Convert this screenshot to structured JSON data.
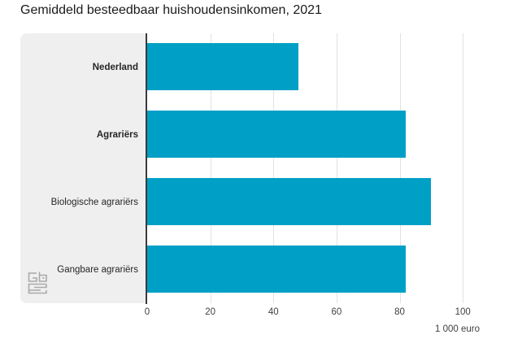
{
  "title": "Gemiddeld besteedbaar huishoudensinkomen, 2021",
  "chart_data": {
    "type": "bar",
    "orientation": "horizontal",
    "title": "Gemiddeld besteedbaar huishoudensinkomen, 2021",
    "categories": [
      "Nederland",
      "Agrariërs",
      "Biologische agrariërs",
      "Gangbare agrariërs"
    ],
    "emphasized": [
      true,
      true,
      false,
      false
    ],
    "values": [
      48,
      82,
      90,
      82
    ],
    "xlabel": "1 000 euro",
    "ylabel": "",
    "xlim": [
      0,
      110
    ],
    "xticks": [
      0,
      20,
      40,
      60,
      80,
      100
    ],
    "grid": true,
    "legend": null,
    "bar_color": "#00a0c6"
  },
  "colors": {
    "bar": "#00a0c6",
    "label_panel": "#efefef",
    "axis_line": "#3a3a3a",
    "gridline": "#e2e2e2",
    "text": "#262626",
    "logo": "#a9a9a9"
  },
  "icons": {
    "logo": "cbs-logo"
  }
}
